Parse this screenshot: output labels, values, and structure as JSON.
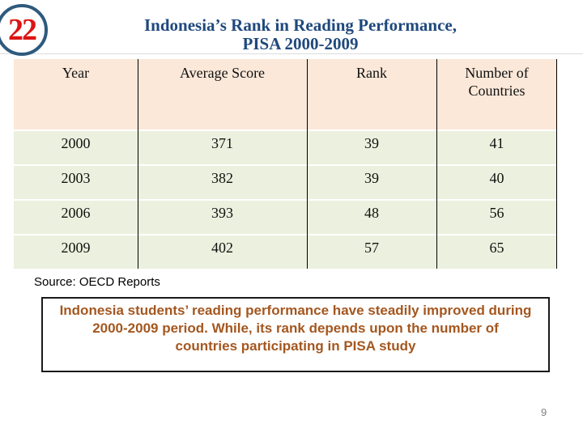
{
  "slide": {
    "badge": "22",
    "title_line1": "Indonesia’s Rank in Reading Performance,",
    "title_line2": "PISA 2000-2009",
    "source": "Source: OECD Reports",
    "page_number": "9"
  },
  "table": {
    "headers": [
      "Year",
      "Average Score",
      "Rank",
      "Number of Countries"
    ],
    "rows": [
      [
        "2000",
        "371",
        "39",
        "41"
      ],
      [
        "2003",
        "382",
        "39",
        "40"
      ],
      [
        "2006",
        "393",
        "48",
        "56"
      ],
      [
        "2009",
        "402",
        "57",
        "65"
      ]
    ]
  },
  "note_box": {
    "lines": [
      "Indonesia students’ reading performance have steadily improved during",
      "2000-2009 period. While, its rank depends upon the number of",
      "countries participating in PISA study"
    ]
  },
  "colors": {
    "title_blue": "#1f497d",
    "badge_red": "#dd1414",
    "badge_ring": "#2e5a7d",
    "header_bg": "#fbe8d9",
    "row_bg": "#ebf1de",
    "note_text": "#a4571f",
    "divider": "#000000"
  }
}
